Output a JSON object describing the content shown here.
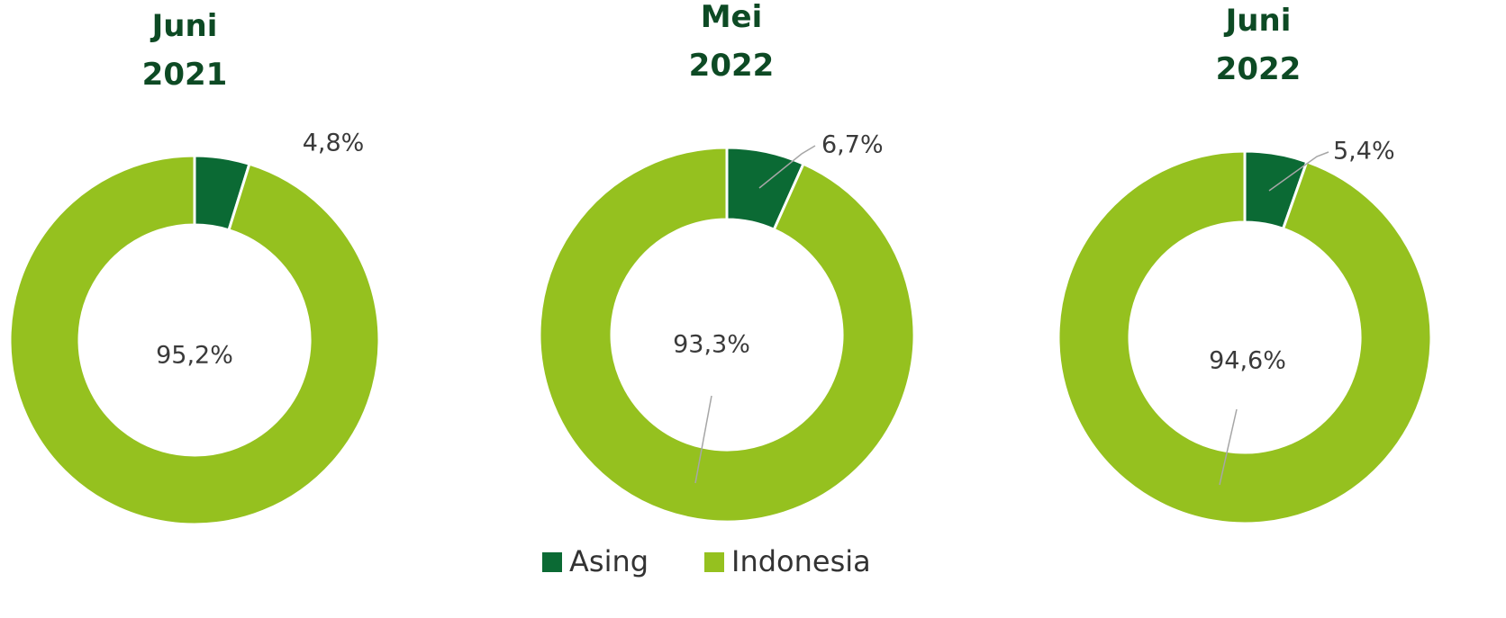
{
  "chart_data": [
    {
      "type": "pie",
      "title": [
        "Juni",
        "2021"
      ],
      "categories": [
        "Asing",
        "Indonesia"
      ],
      "values": [
        4.8,
        95.2
      ],
      "value_labels": [
        "4,8%",
        "95,2%"
      ],
      "colors": [
        "#0b6a34",
        "#95c11f"
      ]
    },
    {
      "type": "pie",
      "title": [
        "Mei",
        "2022"
      ],
      "categories": [
        "Asing",
        "Indonesia"
      ],
      "values": [
        6.7,
        93.3
      ],
      "value_labels": [
        "6,7%",
        "93,3%"
      ],
      "colors": [
        "#0b6a34",
        "#95c11f"
      ]
    },
    {
      "type": "pie",
      "title": [
        "Juni",
        "2022"
      ],
      "categories": [
        "Asing",
        "Indonesia"
      ],
      "values": [
        5.4,
        94.6
      ],
      "value_labels": [
        "5,4%",
        "94,6%"
      ],
      "colors": [
        "#0b6a34",
        "#95c11f"
      ]
    }
  ]
}
